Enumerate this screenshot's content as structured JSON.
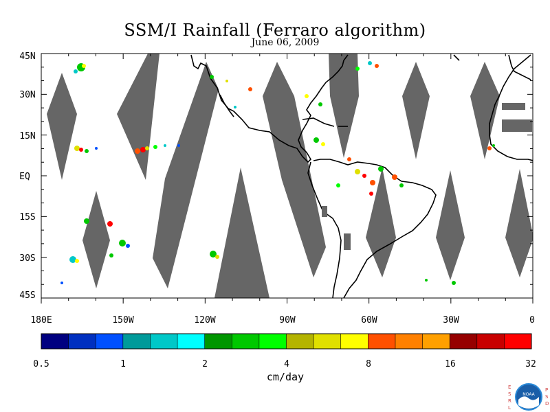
{
  "map": {
    "title": "SSM/I Rainfall (Ferraro algorithm)",
    "subtitle": "June 06, 2009",
    "lat_labels": [
      "45N",
      "30N",
      "15N",
      "EQ",
      "15S",
      "30S",
      "45S"
    ],
    "lon_labels": [
      "180E",
      "150W",
      "120W",
      "90W",
      "60W",
      "30W",
      "0"
    ],
    "extent": {
      "lon_min": -180,
      "lon_max": 0,
      "lat_min": -45,
      "lat_max": 45
    }
  },
  "colorbar": {
    "units": "cm/day",
    "tick_labels": [
      "0.5",
      "1",
      "2",
      "4",
      "8",
      "16",
      "32"
    ],
    "colors": [
      "#000080",
      "#0030c0",
      "#0050ff",
      "#009a9a",
      "#00c8c8",
      "#00ffff",
      "#009600",
      "#00c800",
      "#00ff00",
      "#b4b400",
      "#e0e000",
      "#ffff00",
      "#ff5000",
      "#ff8000",
      "#ffa000",
      "#960000",
      "#c80000",
      "#ff0000"
    ]
  },
  "colors": {
    "swath_gap": "#666666",
    "coast": "#000000"
  },
  "logo": {
    "left_letters": "ESRL",
    "right_letters": "PSD",
    "center": "NOAA"
  }
}
